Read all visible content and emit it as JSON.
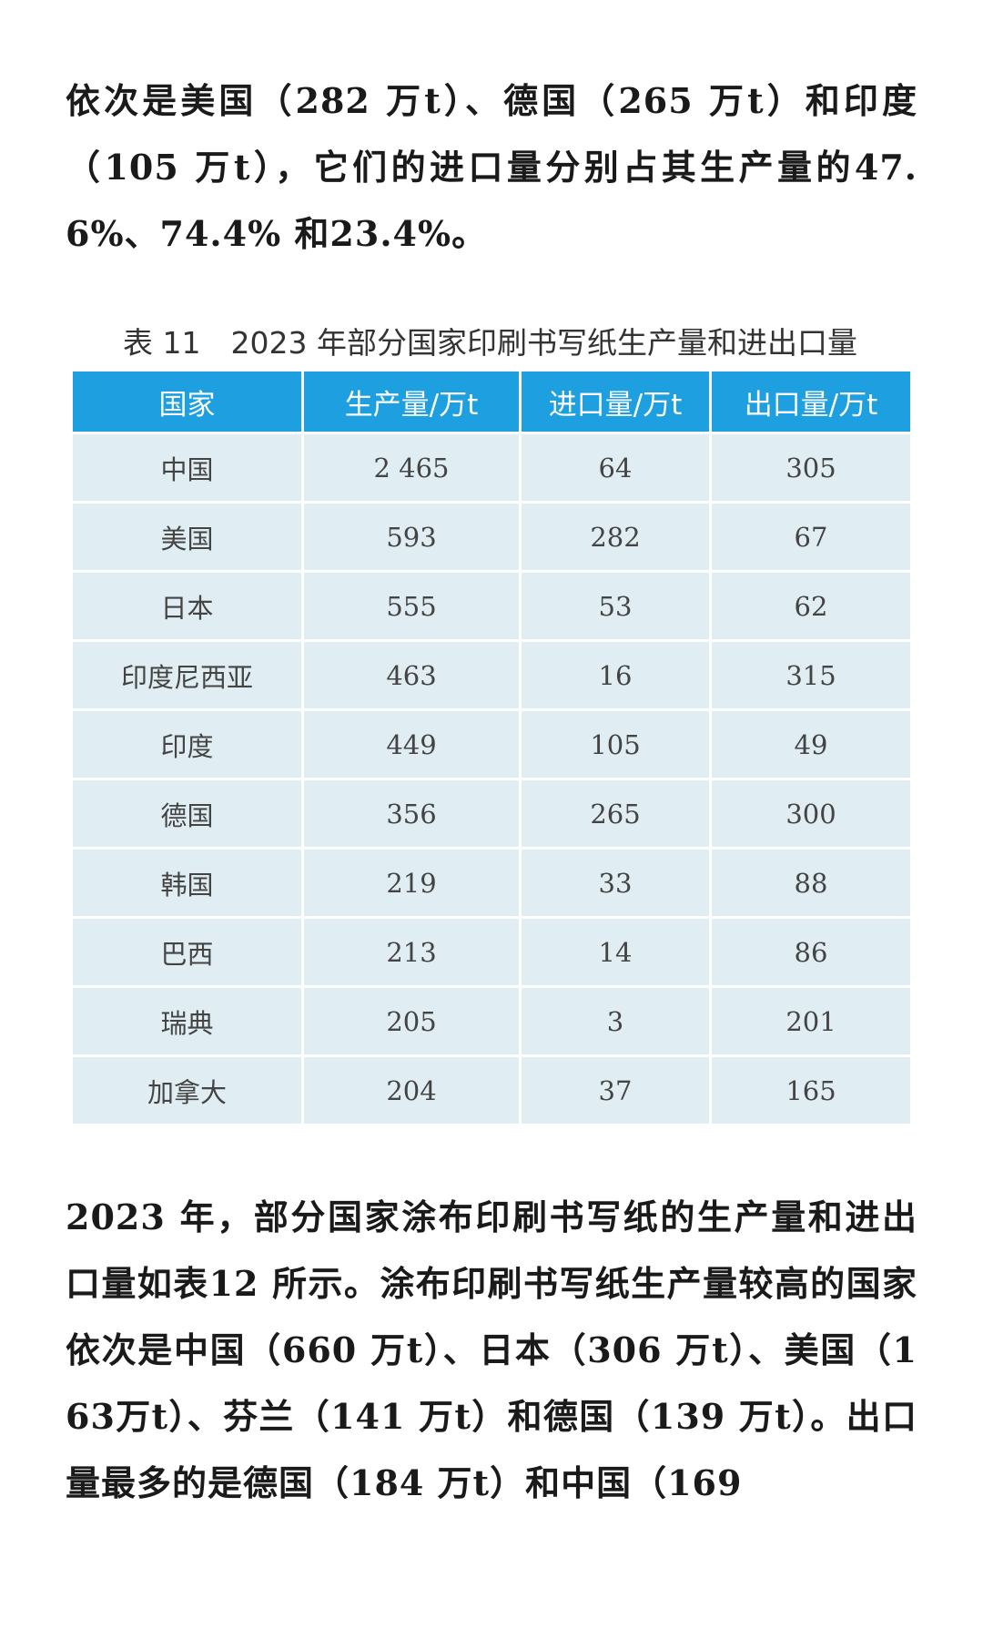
{
  "paragraphs": [
    "依次是美国（282 万t）、德国（265 万t）和印度（105 万t），它们的进口量分别占其生产量的47.6%、74.4% 和23.4%。",
    "2023 年，部分国家涂布印刷书写纸的生产量和进出口量如表12 所示。涂布印刷书写纸生产量较高的国家依次是中国（660 万t）、日本（306 万t）、美国（163万t）、芬兰（141 万t）和德国（139 万t）。出口量最多的是德国（184 万t）和中国（169"
  ],
  "table": {
    "caption": "表 11　2023 年部分国家印刷书写纸生产量和进出口量",
    "header": [
      "国家",
      "生产量/万t",
      "进口量/万t",
      "出口量/万t"
    ],
    "rows": [
      [
        "中国",
        "2 465",
        "64",
        "305"
      ],
      [
        "美国",
        "593",
        "282",
        "67"
      ],
      [
        "日本",
        "555",
        "53",
        "62"
      ],
      [
        "印度尼西亚",
        "463",
        "16",
        "315"
      ],
      [
        "印度",
        "449",
        "105",
        "49"
      ],
      [
        "德国",
        "356",
        "265",
        "300"
      ],
      [
        "韩国",
        "219",
        "33",
        "88"
      ],
      [
        "巴西",
        "213",
        "14",
        "86"
      ],
      [
        "瑞典",
        "205",
        "3",
        "201"
      ],
      [
        "加拿大",
        "204",
        "37",
        "165"
      ]
    ]
  }
}
